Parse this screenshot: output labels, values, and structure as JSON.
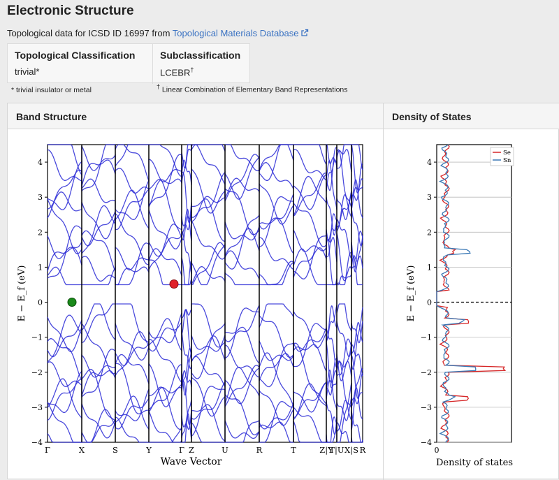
{
  "header": {
    "title": "Electronic Structure"
  },
  "topo": {
    "prefix": "Topological data for ICSD ID 16997 from ",
    "link": "Topological Materials Database",
    "ext_icon": "external-link-icon"
  },
  "classification": {
    "col1_head": "Topological Classification",
    "col1_val": "trivial*",
    "col2_head": "Subclassification",
    "col2_val": "LCEBR",
    "col2_sup": "†",
    "foot1": "* trivial insulator or metal",
    "foot2_sup": "†",
    "foot2": " Linear Combination of Elementary Band Representations"
  },
  "panel": {
    "band_title": "Band Structure",
    "dos_title": "Density of States"
  },
  "chart_data": [
    {
      "type": "line",
      "title": "",
      "xlabel": "Wave Vector",
      "ylabel": "E − E_f (eV)",
      "ylim": [
        -4,
        4.5
      ],
      "yticks": [
        -4,
        -3,
        -2,
        -1,
        0,
        1,
        2,
        3,
        4
      ],
      "high_symmetry_points": [
        "Γ",
        "X",
        "S",
        "Y",
        "Γ",
        "Z",
        "U",
        "R",
        "T",
        "Z|Y",
        "T|U",
        "X|S",
        "R"
      ],
      "valence_band_max": {
        "k": "Γ–X",
        "energy": 0.0,
        "color": "#1a8a1a"
      },
      "conduction_band_min": {
        "k": "Y–Γ",
        "energy": 0.52,
        "color": "#e0202a"
      },
      "band_color": "#2a2ad6"
    },
    {
      "type": "line",
      "title": "",
      "xlabel": "Density of states",
      "ylabel": "E − E_f (eV)",
      "ylim": [
        -4,
        4.5
      ],
      "yticks": [
        -4,
        -3,
        -2,
        -1,
        0,
        1,
        2,
        3,
        4
      ],
      "xticks": [
        0
      ],
      "legend": "top-right",
      "series": [
        {
          "name": "Se",
          "color": "#d62728"
        },
        {
          "name": "Sn",
          "color": "#3a78b5"
        }
      ]
    }
  ]
}
